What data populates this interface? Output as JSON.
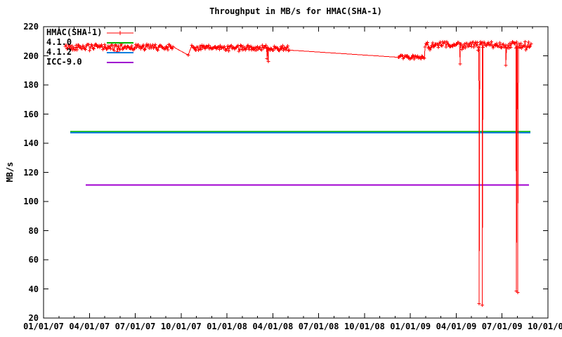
{
  "chart_data": {
    "type": "line",
    "title": "Throughput in MB/s for HMAC(SHA-1)",
    "ylabel": "MB/s",
    "ylim": [
      20,
      220
    ],
    "ytick_step": 20,
    "ytick_labels": [
      "20",
      "40",
      "60",
      "80",
      "100",
      "120",
      "140",
      "160",
      "180",
      "200",
      "220"
    ],
    "xlim_months": [
      0,
      33
    ],
    "xtick_every_months": 3,
    "xtick_minor_every_months": 1,
    "xtick_labels": [
      "01/01/07",
      "04/01/07",
      "07/01/07",
      "10/01/07",
      "01/01/08",
      "04/01/08",
      "07/01/08",
      "10/01/08",
      "01/01/09",
      "04/01/09",
      "07/01/09",
      "10/01/09"
    ],
    "grid": false,
    "legend_position": "top-left-inside",
    "axis_color": "#000000",
    "background_color": "#ffffff",
    "series": [
      {
        "name": "HMAC(SHA-1)",
        "color": "#ff0000",
        "style": "linespoints",
        "marker": "plus",
        "note": "x in months since 01/01/07; noisy bands of dense samples plus explicit anomaly points read off the plot",
        "bands": [
          {
            "from": 1.42,
            "to": 8.5,
            "value": 206.0,
            "noise": 2.0
          },
          {
            "from": 9.7,
            "to": 16.09,
            "value": 205.5,
            "noise": 1.8
          },
          {
            "from": 23.21,
            "to": 24.96,
            "value": 199.0,
            "noise": 1.2
          },
          {
            "from": 24.96,
            "to": 31.94,
            "value": 207.5,
            "noise": 2.2
          }
        ],
        "points": [
          {
            "month": 9.47,
            "value": 200.5
          },
          {
            "month": 14.62,
            "value": 198.0
          },
          {
            "month": 14.7,
            "value": 196.2
          },
          {
            "month": 27.26,
            "value": 194.5
          },
          {
            "month": 28.5,
            "value": 30.0
          },
          {
            "month": 28.7,
            "value": 29.0
          },
          {
            "month": 30.24,
            "value": 193.5
          },
          {
            "month": 30.94,
            "value": 38.5
          },
          {
            "month": 31.02,
            "value": 37.5
          }
        ]
      },
      {
        "name": "4.1.0",
        "color": "#00b400",
        "style": "hline",
        "value": 148.0,
        "from": 1.75,
        "to": 31.85
      },
      {
        "name": "4.1.2",
        "color": "#0080e0",
        "style": "hline",
        "value": 147.2,
        "from": 1.75,
        "to": 31.85
      },
      {
        "name": "ICC-9.0",
        "color": "#a000d0",
        "style": "hline",
        "value": 111.3,
        "from": 2.76,
        "to": 31.76
      }
    ]
  },
  "legend": {
    "items": [
      {
        "label": "HMAC(SHA-1)",
        "color": "#ff0000",
        "sample": "line-with-plus-marker"
      },
      {
        "label": "4.1.0",
        "color": "#00b400",
        "sample": "line"
      },
      {
        "label": "4.1.2",
        "color": "#0080e0",
        "sample": "line"
      },
      {
        "label": "ICC-9.0",
        "color": "#a000d0",
        "sample": "line"
      }
    ]
  }
}
